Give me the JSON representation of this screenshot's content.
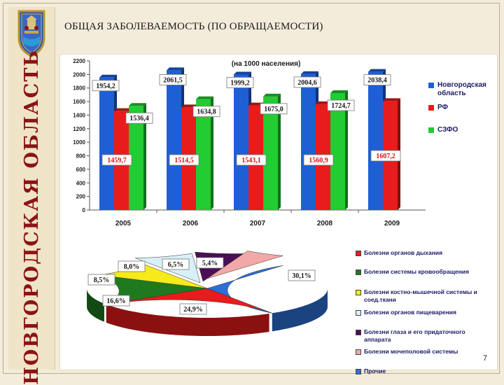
{
  "page": {
    "vertical_title": "НОВГОРОДСКАЯ ОБЛАСТЬ",
    "title": "ОБЩАЯ ЗАБОЛЕВАЕМОСТЬ (ПО ОБРАЩАЕМОСТИ)",
    "page_number": "7",
    "colors": {
      "background": "#f3ecda",
      "vertical_title": "#8a1414"
    }
  },
  "chart_data": [
    {
      "type": "bar",
      "title": "(на 1000 населения)",
      "categories": [
        "2005",
        "2006",
        "2007",
        "2008",
        "2009"
      ],
      "series": [
        {
          "name": "Новгородская область",
          "color": "#1e5fd6",
          "values": [
            1954.2,
            2061.5,
            1999.2,
            2004.6,
            2038.4
          ],
          "labels": [
            "1954,2",
            "2061,5",
            "1999,2",
            "2004,6",
            "2038,4"
          ]
        },
        {
          "name": "РФ",
          "color": "#e81c1c",
          "values": [
            1459.7,
            1514.5,
            1543.1,
            1560.9,
            1607.2
          ],
          "labels": [
            "1459,7",
            "1514,5",
            "1543,1",
            "1560,9",
            "1607,2"
          ]
        },
        {
          "name": "СЗФО",
          "color": "#22cc33",
          "values": [
            1536.4,
            1634.8,
            1675.0,
            1724.7,
            null
          ],
          "labels": [
            "1536,4",
            "1634,8",
            "1675,0",
            "1724,7",
            ""
          ]
        }
      ],
      "ylim": [
        0,
        2200
      ],
      "yticks": [
        "0",
        "200",
        "400",
        "600",
        "800",
        "1000",
        "1200",
        "1400",
        "1600",
        "1800",
        "2000",
        "2200"
      ],
      "grid": false,
      "legend_position": "right"
    },
    {
      "type": "pie",
      "slices": [
        {
          "name": "Болезни органов дыхания",
          "value": 24.9,
          "label": "24,9%",
          "color": "#e81c1c"
        },
        {
          "name": "Болезни системы кровообращения",
          "value": 16.6,
          "label": "16,6%",
          "color": "#1f7a1f"
        },
        {
          "name": "Болезни костно-мышечной системы и соед.ткани",
          "value": 8.5,
          "label": "8,5%",
          "color": "#f5ea1a"
        },
        {
          "name": "Болезни органов пищеварения",
          "value": 8.0,
          "label": "8,0%",
          "color": "#d8f0f8"
        },
        {
          "name": "Болезни глаза и его придаточного аппарата",
          "value": 6.5,
          "label": "6,5%",
          "color": "#4a0f55"
        },
        {
          "name": "Болезни мочеполовой системы",
          "value": 5.4,
          "label": "5,4%",
          "color": "#f2a8a8"
        },
        {
          "name": "Прочие",
          "value": 30.1,
          "label": "30,1%",
          "color": "#2b6fd6"
        }
      ],
      "legend_position": "right"
    }
  ]
}
